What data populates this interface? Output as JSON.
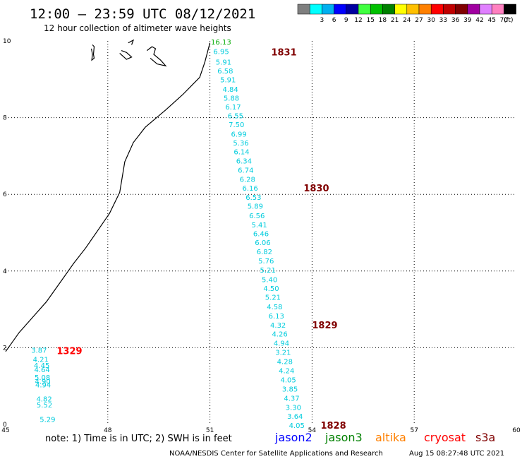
{
  "header": {
    "title": "12:00 – 23:59 UTC 08/12/2021",
    "subtitle": "12 hour collection of altimeter wave heights"
  },
  "color_scale": {
    "unit": "(ft)",
    "bins": [
      {
        "label": "",
        "color": "#7f7f7f"
      },
      {
        "label": "3",
        "color": "#00ffff"
      },
      {
        "label": "6",
        "color": "#00b0f0"
      },
      {
        "label": "9",
        "color": "#0000ff"
      },
      {
        "label": "12",
        "color": "#0000a0"
      },
      {
        "label": "15",
        "color": "#40ff40"
      },
      {
        "label": "18",
        "color": "#00c000"
      },
      {
        "label": "21",
        "color": "#008000"
      },
      {
        "label": "24",
        "color": "#ffff00"
      },
      {
        "label": "27",
        "color": "#ffc000"
      },
      {
        "label": "30",
        "color": "#ff8000"
      },
      {
        "label": "33",
        "color": "#ff0000"
      },
      {
        "label": "36",
        "color": "#c00000"
      },
      {
        "label": "39",
        "color": "#800000"
      },
      {
        "label": "42",
        "color": "#a000a0"
      },
      {
        "label": "45",
        "color": "#e080ff"
      },
      {
        "label": "70",
        "color": "#ff80c0"
      },
      {
        "label": "",
        "color": "#000000"
      }
    ]
  },
  "axes": {
    "lon_ticks": [
      "45",
      "48",
      "51",
      "54",
      "57",
      "60"
    ],
    "lat_ticks": [
      "0",
      "2",
      "4",
      "6",
      "8",
      "10"
    ],
    "lon_range": [
      45,
      60
    ],
    "lat_range": [
      0,
      10
    ]
  },
  "tracks": [
    {
      "time_label": "1831",
      "time_color": "#800000",
      "time_at": [
        52.8,
        9.71
      ],
      "value_color": "#00ccdd",
      "points": [
        {
          "lon": 51.03,
          "lat": 9.98,
          "v": "16.13",
          "c": "#00aa00"
        },
        {
          "lon": 51.1,
          "lat": 9.73,
          "v": "6.95"
        },
        {
          "lon": 51.17,
          "lat": 9.46,
          "v": "5.91"
        },
        {
          "lon": 51.22,
          "lat": 9.23,
          "v": "6.58"
        },
        {
          "lon": 51.3,
          "lat": 9.0,
          "v": "5.91"
        },
        {
          "lon": 51.37,
          "lat": 8.75,
          "v": "4.84"
        },
        {
          "lon": 51.4,
          "lat": 8.52,
          "v": "5.88"
        },
        {
          "lon": 51.45,
          "lat": 8.29,
          "v": "6.17"
        },
        {
          "lon": 51.52,
          "lat": 8.06,
          "v": "6.55"
        },
        {
          "lon": 51.55,
          "lat": 7.83,
          "v": "7.50"
        },
        {
          "lon": 51.62,
          "lat": 7.58,
          "v": "6.99"
        },
        {
          "lon": 51.68,
          "lat": 7.35,
          "v": "5.36"
        },
        {
          "lon": 51.7,
          "lat": 7.12,
          "v": "6.14"
        },
        {
          "lon": 51.77,
          "lat": 6.88,
          "v": "6.34"
        },
        {
          "lon": 51.82,
          "lat": 6.64,
          "v": "6.74"
        },
        {
          "lon": 51.87,
          "lat": 6.4,
          "v": "6.28"
        },
        {
          "lon": 51.95,
          "lat": 6.17,
          "v": "6.16"
        }
      ]
    },
    {
      "time_label": "1830",
      "time_color": "#800000",
      "time_at": [
        53.75,
        6.17
      ],
      "value_color": "#00ccdd",
      "points": [
        {
          "lon": 52.05,
          "lat": 5.93,
          "v": "6.53"
        },
        {
          "lon": 52.1,
          "lat": 5.7,
          "v": "5.89"
        },
        {
          "lon": 52.15,
          "lat": 5.45,
          "v": "6.56"
        },
        {
          "lon": 52.22,
          "lat": 5.21,
          "v": "5.41"
        },
        {
          "lon": 52.27,
          "lat": 4.98,
          "v": "6.46"
        },
        {
          "lon": 52.32,
          "lat": 4.75,
          "v": "6.06"
        },
        {
          "lon": 52.37,
          "lat": 4.51,
          "v": "6.82"
        },
        {
          "lon": 52.42,
          "lat": 4.27,
          "v": "5.76"
        },
        {
          "lon": 52.47,
          "lat": 4.03,
          "v": "5.21"
        },
        {
          "lon": 52.52,
          "lat": 3.78,
          "v": "5.40"
        },
        {
          "lon": 52.57,
          "lat": 3.55,
          "v": "4.50"
        },
        {
          "lon": 52.62,
          "lat": 3.32,
          "v": "5.21"
        },
        {
          "lon": 52.67,
          "lat": 3.08,
          "v": "4.58"
        },
        {
          "lon": 52.72,
          "lat": 2.84,
          "v": "6.13"
        },
        {
          "lon": 52.77,
          "lat": 2.6,
          "v": "4.32"
        }
      ]
    },
    {
      "time_label": "1829",
      "time_color": "#800000",
      "time_at": [
        54.0,
        2.6
      ],
      "value_color": "#00ccdd",
      "points": [
        {
          "lon": 52.82,
          "lat": 2.37,
          "v": "4.26"
        },
        {
          "lon": 52.87,
          "lat": 2.13,
          "v": "4.94"
        },
        {
          "lon": 52.92,
          "lat": 1.89,
          "v": "3.21"
        },
        {
          "lon": 52.97,
          "lat": 1.65,
          "v": "4.28"
        },
        {
          "lon": 53.02,
          "lat": 1.41,
          "v": "4.24"
        },
        {
          "lon": 53.07,
          "lat": 1.17,
          "v": "4.05"
        },
        {
          "lon": 53.12,
          "lat": 0.93,
          "v": "3.85"
        },
        {
          "lon": 53.17,
          "lat": 0.69,
          "v": "4.37"
        },
        {
          "lon": 53.22,
          "lat": 0.45,
          "v": "3.30"
        },
        {
          "lon": 53.27,
          "lat": 0.22,
          "v": "3.64"
        },
        {
          "lon": 53.32,
          "lat": -0.02,
          "v": "4.05"
        }
      ]
    },
    {
      "time_label": "1828",
      "time_color": "#800000",
      "time_at": [
        54.25,
        -0.02
      ],
      "value_color": "#00ccdd",
      "points": []
    },
    {
      "time_label": "1329",
      "time_color": "#ff0000",
      "time_at": [
        46.5,
        1.92
      ],
      "value_color": "#00ccdd",
      "points": [
        {
          "lon": 45.75,
          "lat": 1.94,
          "v": "3.87"
        },
        {
          "lon": 45.8,
          "lat": 1.7,
          "v": "4.21"
        },
        {
          "lon": 45.83,
          "lat": 1.55,
          "v": "4.45"
        },
        {
          "lon": 45.84,
          "lat": 1.44,
          "v": "4.64"
        },
        {
          "lon": 45.85,
          "lat": 1.23,
          "v": "5.08"
        },
        {
          "lon": 45.86,
          "lat": 1.13,
          "v": "4.90"
        },
        {
          "lon": 45.87,
          "lat": 1.04,
          "v": "4.94"
        },
        {
          "lon": 45.9,
          "lat": 0.67,
          "v": "4.82"
        },
        {
          "lon": 45.91,
          "lat": 0.52,
          "v": "5.52"
        },
        {
          "lon": 46.0,
          "lat": 0.14,
          "v": "5.29"
        }
      ]
    }
  ],
  "coastline": [
    [
      51.0,
      9.95
    ],
    [
      50.85,
      9.45
    ],
    [
      50.7,
      9.05
    ],
    [
      50.2,
      8.6
    ],
    [
      49.7,
      8.2
    ],
    [
      49.1,
      7.75
    ],
    [
      48.75,
      7.35
    ],
    [
      48.5,
      6.85
    ],
    [
      48.35,
      6.05
    ],
    [
      48.05,
      5.5
    ],
    [
      47.7,
      5.05
    ],
    [
      47.35,
      4.6
    ],
    [
      47.0,
      4.2
    ],
    [
      46.6,
      3.7
    ],
    [
      46.2,
      3.2
    ],
    [
      45.8,
      2.8
    ],
    [
      45.4,
      2.4
    ],
    [
      45.0,
      1.9
    ]
  ],
  "islands": [
    [
      [
        47.55,
        9.9
      ],
      [
        47.6,
        9.85
      ],
      [
        47.58,
        9.65
      ],
      [
        47.6,
        9.55
      ],
      [
        47.53,
        9.5
      ],
      [
        47.55,
        9.65
      ],
      [
        47.52,
        9.8
      ]
    ],
    [
      [
        48.4,
        9.75
      ],
      [
        48.55,
        9.7
      ],
      [
        48.7,
        9.58
      ],
      [
        48.55,
        9.52
      ],
      [
        48.45,
        9.6
      ],
      [
        48.35,
        9.68
      ]
    ],
    [
      [
        48.6,
        9.95
      ],
      [
        48.75,
        10.02
      ],
      [
        48.7,
        9.9
      ]
    ],
    [
      [
        49.15,
        9.75
      ],
      [
        49.3,
        9.85
      ],
      [
        49.4,
        9.8
      ],
      [
        49.35,
        9.65
      ],
      [
        49.55,
        9.5
      ],
      [
        49.7,
        9.35
      ],
      [
        49.45,
        9.4
      ],
      [
        49.25,
        9.55
      ]
    ]
  ],
  "legend": {
    "note": "note:  1) Time is in UTC;  2) SWH is in feet",
    "missions": [
      {
        "name": "jason2",
        "color": "#0000ff"
      },
      {
        "name": "jason3",
        "color": "#008000"
      },
      {
        "name": "altika",
        "color": "#ff8000"
      },
      {
        "name": "cryosat",
        "color": "#ff0000"
      },
      {
        "name": "s3a",
        "color": "#800000"
      }
    ],
    "credit": "NOAA/NESDIS Center for Satellite Applications and Research",
    "timestamp": "Aug 15 08:27:48 UTC 2021"
  }
}
